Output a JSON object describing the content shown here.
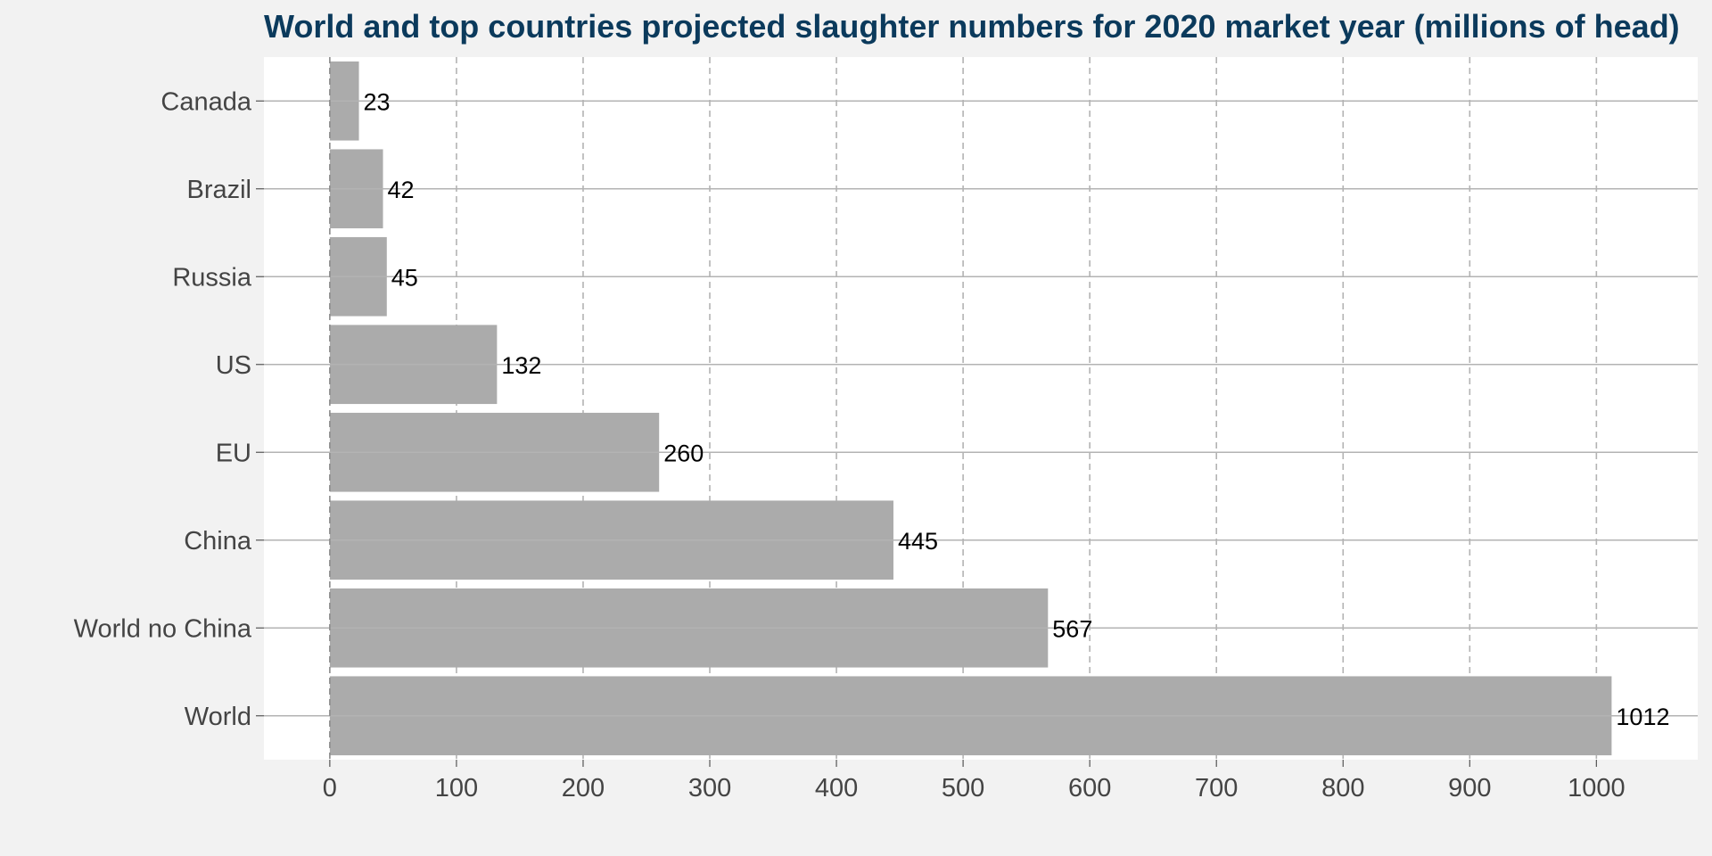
{
  "chart_data": {
    "type": "bar",
    "orientation": "horizontal",
    "title": "World and top countries projected slaughter numbers for 2020 market year (millions of head)",
    "xlabel": "",
    "ylabel": "",
    "categories": [
      "Canada",
      "Brazil",
      "Russia",
      "US",
      "EU",
      "China",
      "World no China",
      "World"
    ],
    "values": [
      23,
      42,
      45,
      132,
      260,
      445,
      567,
      1012
    ],
    "data_labels": [
      "23",
      "42",
      "45",
      "132",
      "260",
      "445",
      "567",
      "1012"
    ],
    "xlim": [
      -52,
      1080
    ],
    "xticks": [
      0,
      100,
      200,
      300,
      400,
      500,
      600,
      700,
      800,
      900,
      1000
    ],
    "xtick_labels": [
      "0",
      "100",
      "200",
      "300",
      "400",
      "500",
      "600",
      "700",
      "800",
      "900",
      "1000"
    ],
    "grid": "vertical dashed, horizontal solid",
    "legend": "none",
    "colors": {
      "bar": "#ababab",
      "background": "#f2f2f2",
      "panel": "#ffffff",
      "title": "#0b3a5c",
      "vgrid": "#b3b3b3",
      "hgrid": "#b3b3b3",
      "zero_line": "#8c8c8c"
    }
  }
}
